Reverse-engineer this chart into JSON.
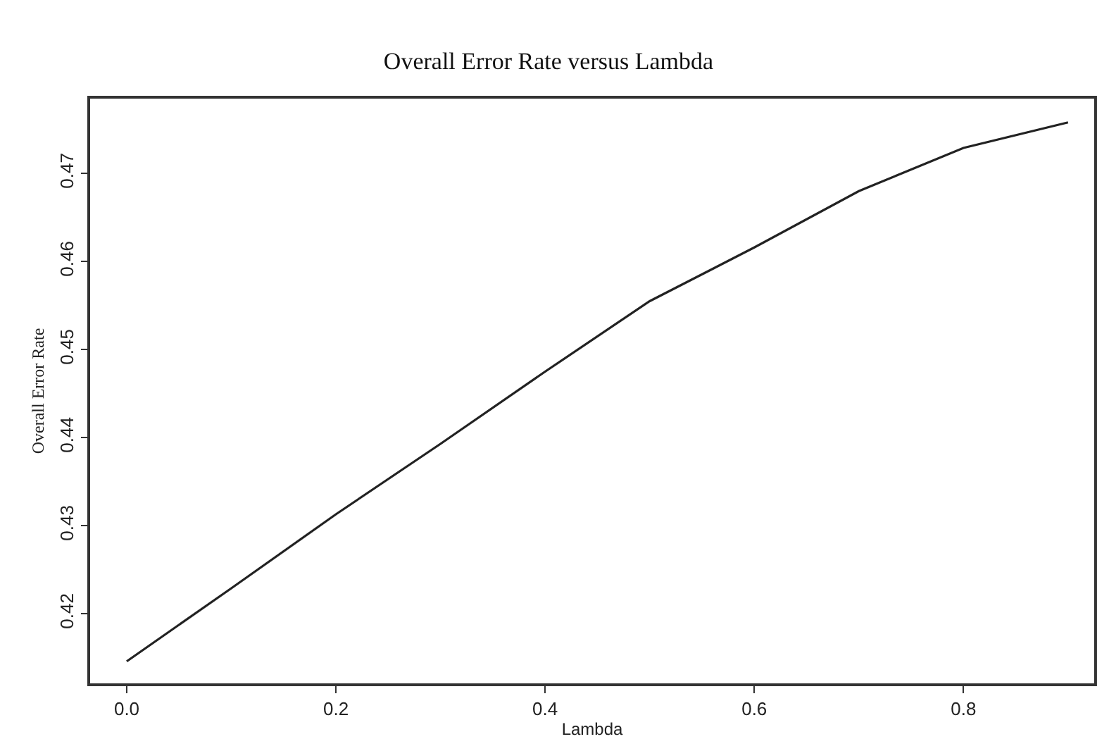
{
  "chart_data": {
    "type": "line",
    "title": "Overall Error Rate versus Lambda",
    "xlabel": "Lambda",
    "ylabel": "Overall Error Rate",
    "x": [
      0.0,
      0.1,
      0.2,
      0.3,
      0.4,
      0.5,
      0.6,
      0.7,
      0.8,
      0.9
    ],
    "series": [
      {
        "color": "#222222",
        "values": [
          0.4146,
          0.4229,
          0.4313,
          0.4393,
          0.4475,
          0.4555,
          0.4616,
          0.468,
          0.4729,
          0.4758
        ]
      }
    ],
    "xlim": [
      -0.035,
      0.925
    ],
    "ylim": [
      0.4121,
      0.4785
    ],
    "xticks": [
      {
        "value": 0,
        "label": "0.0"
      },
      0.2,
      0.4,
      0.6,
      0.8
    ],
    "yticks": [
      0.42,
      0.43,
      0.44,
      0.45,
      0.46,
      0.47
    ],
    "grid": false,
    "marker": "none",
    "line_style": "solid"
  }
}
